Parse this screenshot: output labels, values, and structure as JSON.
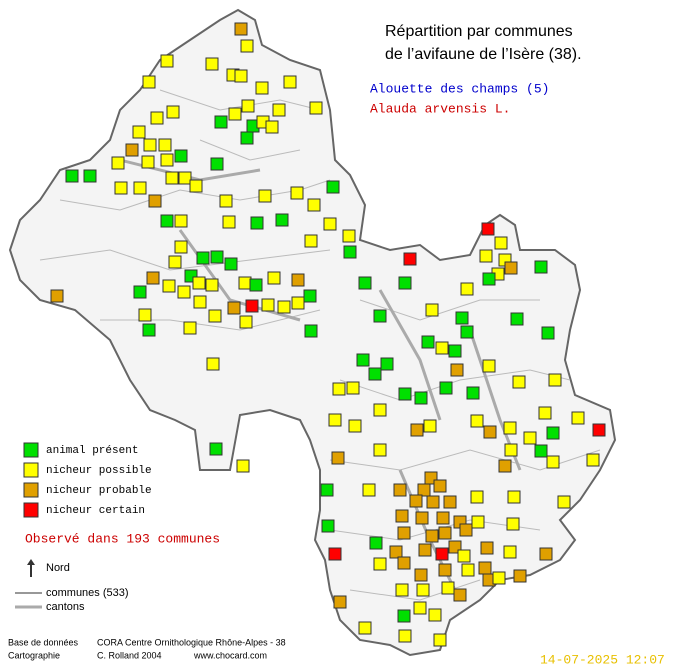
{
  "title": [
    "Répartition par communes",
    "de l’avifaune de l’Isère (38)."
  ],
  "species": {
    "common": "Alouette des champs  (5)",
    "latin": "Alauda arvensis L."
  },
  "legend": [
    {
      "name": "animal présent",
      "color": "#00e000"
    },
    {
      "name": "nicheur possible",
      "color": "#ffff00"
    },
    {
      "name": "nicheur probable",
      "color": "#e0a000"
    },
    {
      "name": "nicheur certain",
      "color": "#ff0000"
    }
  ],
  "observed": "Observé dans 193 communes",
  "north": "Nord",
  "lines": [
    "communes (533)",
    "cantons"
  ],
  "credits": [
    [
      "Base de données",
      "CORA Centre Ornithologique Rhône-Alpes - 38"
    ],
    [
      "Cartographie",
      "C. Rolland 2004",
      "www.chocard.com"
    ]
  ],
  "date": "14-07-2025 12:07"
}
